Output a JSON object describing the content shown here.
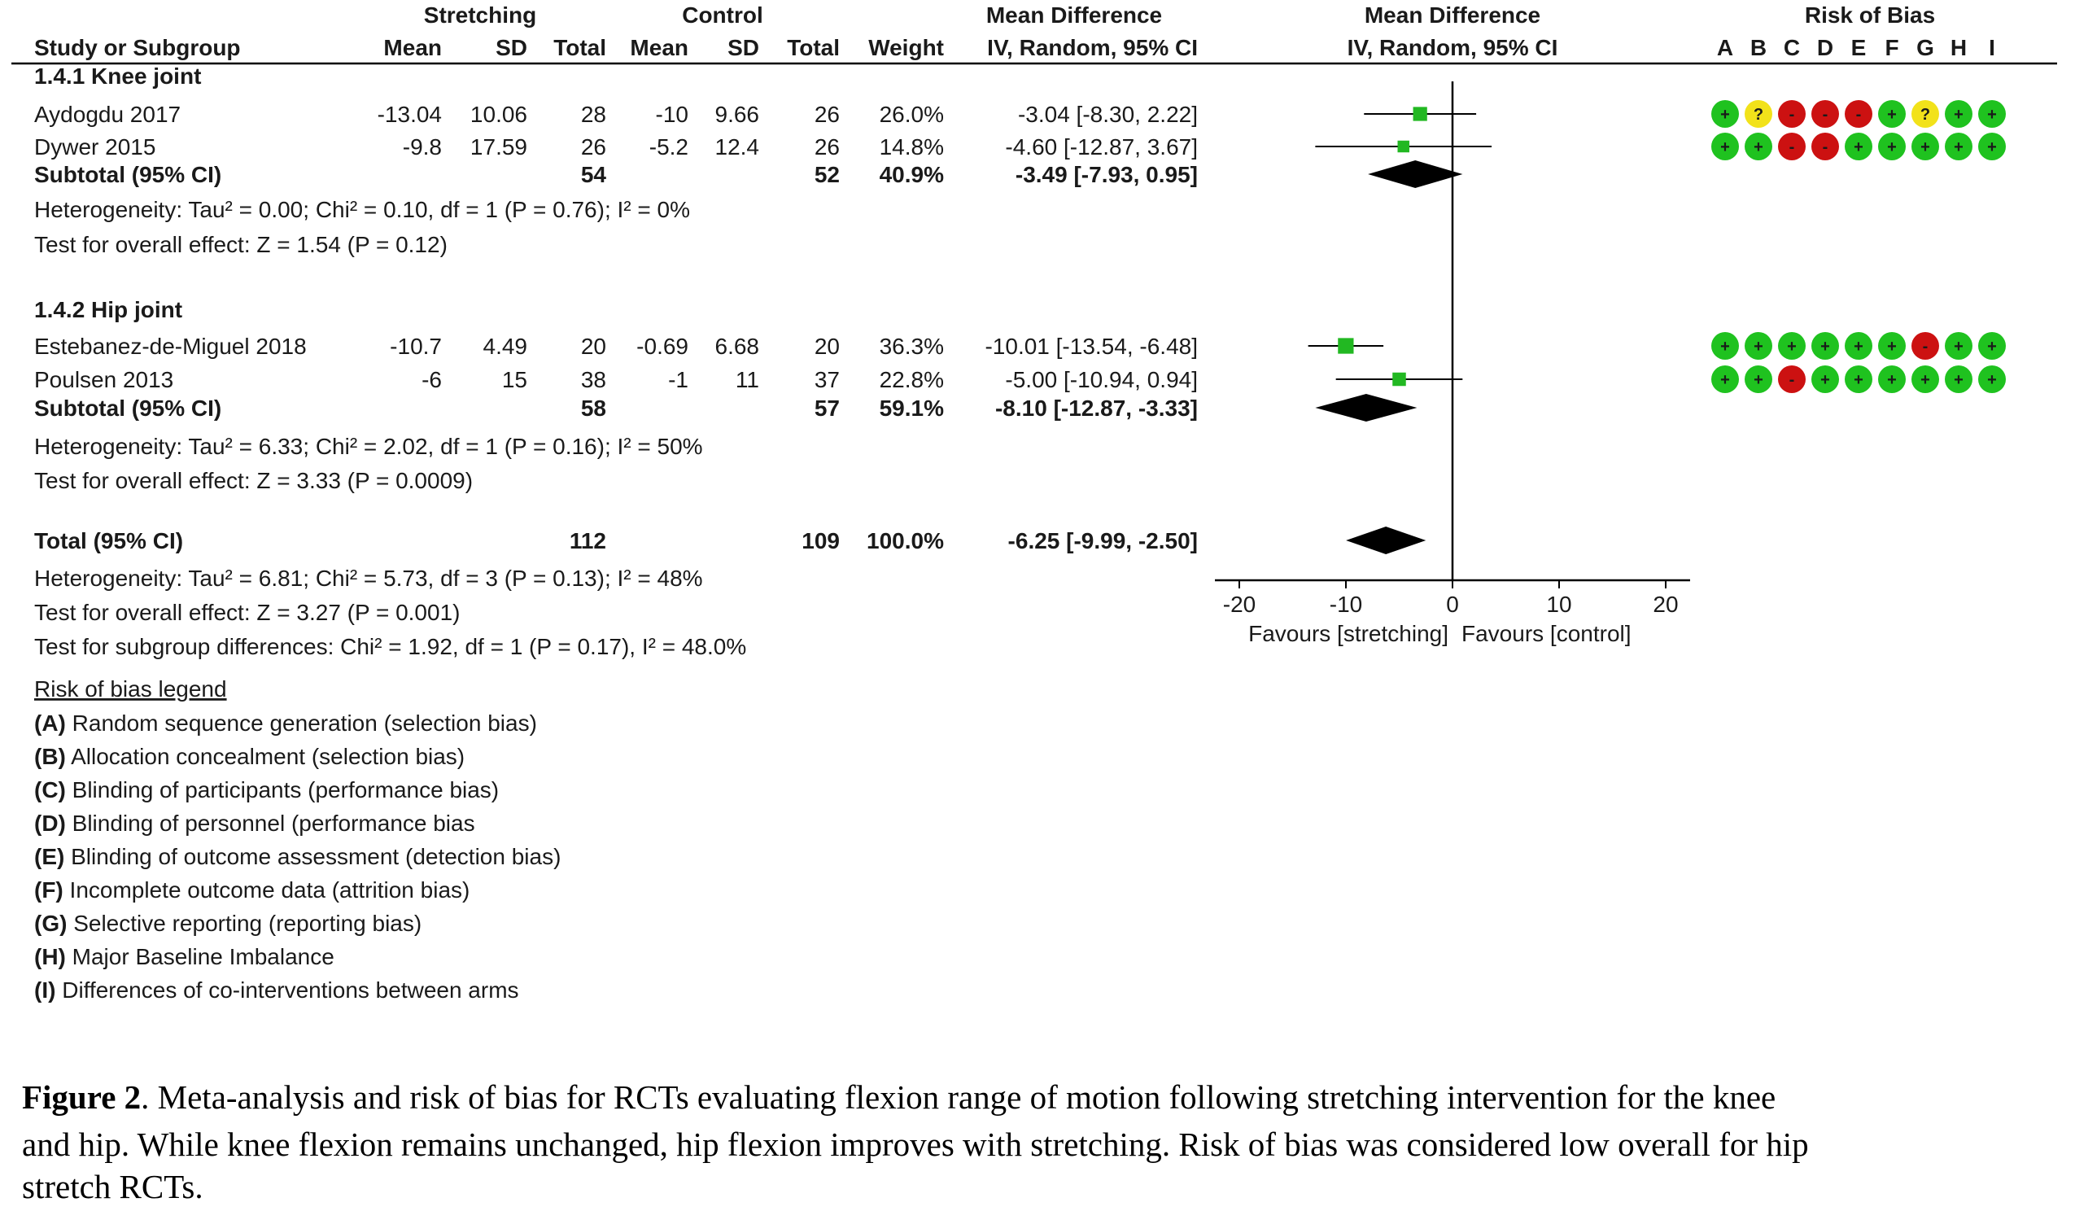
{
  "header": {
    "group_stretching": "Stretching",
    "group_control": "Control",
    "group_md_text": "Mean Difference",
    "group_md_plot": "Mean Difference",
    "group_rob": "Risk of Bias",
    "col_study": "Study or Subgroup",
    "col_mean": "Mean",
    "col_sd": "SD",
    "col_total": "Total",
    "col_weight": "Weight",
    "col_md_text": "IV, Random, 95% CI",
    "col_md_plot": "IV, Random, 95% CI"
  },
  "rob_letters": [
    "A",
    "B",
    "C",
    "D",
    "E",
    "F",
    "G",
    "H",
    "I"
  ],
  "chart_data": {
    "type": "forest",
    "effect_measure": "Mean Difference, IV, Random, 95% CI",
    "xlim": [
      -20,
      20
    ],
    "xticks": [
      "-20",
      "-10",
      "0",
      "10",
      "20"
    ],
    "xlabel_left": "Favours [stretching]",
    "xlabel_right": "Favours [control]",
    "subgroups": [
      {
        "label": "1.4.1 Knee joint",
        "studies": [
          {
            "name": "Aydogdu 2017",
            "exp_mean": "-13.04",
            "exp_sd": "10.06",
            "exp_total": "28",
            "ctrl_mean": "-10",
            "ctrl_sd": "9.66",
            "ctrl_total": "26",
            "weight": "26.0%",
            "ci_text": "-3.04 [-8.30, 2.22]",
            "md": -3.04,
            "lo": -8.3,
            "hi": 2.22,
            "w": 26.0,
            "rob": [
              "+",
              "?",
              "-",
              "-",
              "-",
              "+",
              "?",
              "+",
              "+"
            ]
          },
          {
            "name": "Dywer 2015",
            "exp_mean": "-9.8",
            "exp_sd": "17.59",
            "exp_total": "26",
            "ctrl_mean": "-5.2",
            "ctrl_sd": "12.4",
            "ctrl_total": "26",
            "weight": "14.8%",
            "ci_text": "-4.60 [-12.87, 3.67]",
            "md": -4.6,
            "lo": -12.87,
            "hi": 3.67,
            "w": 14.8,
            "rob": [
              "+",
              "+",
              "-",
              "-",
              "+",
              "+",
              "+",
              "+",
              "+"
            ]
          }
        ],
        "subtotal": {
          "label": "Subtotal (95% CI)",
          "exp_total": "54",
          "ctrl_total": "52",
          "weight": "40.9%",
          "ci_text": "-3.49 [-7.93, 0.95]",
          "md": -3.49,
          "lo": -7.93,
          "hi": 0.95
        },
        "heterogeneity": "Heterogeneity: Tau² = 0.00; Chi² = 0.10, df = 1 (P = 0.76); I² = 0%",
        "overall": "Test for overall effect: Z = 1.54 (P = 0.12)"
      },
      {
        "label": "1.4.2 Hip joint",
        "studies": [
          {
            "name": "Estebanez-de-Miguel 2018",
            "exp_mean": "-10.7",
            "exp_sd": "4.49",
            "exp_total": "20",
            "ctrl_mean": "-0.69",
            "ctrl_sd": "6.68",
            "ctrl_total": "20",
            "weight": "36.3%",
            "ci_text": "-10.01 [-13.54, -6.48]",
            "md": -10.01,
            "lo": -13.54,
            "hi": -6.48,
            "w": 36.3,
            "rob": [
              "+",
              "+",
              "+",
              "+",
              "+",
              "+",
              "-",
              "+",
              "+"
            ]
          },
          {
            "name": "Poulsen 2013",
            "exp_mean": "-6",
            "exp_sd": "15",
            "exp_total": "38",
            "ctrl_mean": "-1",
            "ctrl_sd": "11",
            "ctrl_total": "37",
            "weight": "22.8%",
            "ci_text": "-5.00 [-10.94, 0.94]",
            "md": -5.0,
            "lo": -10.94,
            "hi": 0.94,
            "w": 22.8,
            "rob": [
              "+",
              "+",
              "-",
              "+",
              "+",
              "+",
              "+",
              "+",
              "+"
            ]
          }
        ],
        "subtotal": {
          "label": "Subtotal (95% CI)",
          "exp_total": "58",
          "ctrl_total": "57",
          "weight": "59.1%",
          "ci_text": "-8.10 [-12.87, -3.33]",
          "md": -8.1,
          "lo": -12.87,
          "hi": -3.33
        },
        "heterogeneity": "Heterogeneity: Tau² = 6.33; Chi² = 2.02, df = 1 (P = 0.16); I² = 50%",
        "overall": "Test for overall effect: Z = 3.33 (P = 0.0009)"
      }
    ],
    "total": {
      "label": "Total (95% CI)",
      "exp_total": "112",
      "ctrl_total": "109",
      "weight": "100.0%",
      "ci_text": "-6.25 [-9.99, -2.50]",
      "md": -6.25,
      "lo": -9.99,
      "hi": -2.5
    },
    "total_notes": [
      "Heterogeneity: Tau² = 6.81; Chi² = 5.73, df = 3 (P = 0.13); I² = 48%",
      "Test for overall effect: Z = 3.27 (P = 0.001)",
      "Test for subgroup differences: Chi² = 1.92, df = 1 (P = 0.17), I² = 48.0%"
    ]
  },
  "legend": {
    "title": "Risk of bias legend",
    "items": [
      {
        "key": "(A)",
        "text": "Random sequence generation (selection bias)"
      },
      {
        "key": "(B)",
        "text": "Allocation concealment (selection bias)"
      },
      {
        "key": "(C)",
        "text": "Blinding of participants (performance bias)"
      },
      {
        "key": "(D)",
        "text": "Blinding of personnel (performance bias"
      },
      {
        "key": "(E)",
        "text": "Blinding of outcome assessment (detection bias)"
      },
      {
        "key": "(F)",
        "text": "Incomplete outcome data (attrition bias)"
      },
      {
        "key": "(G)",
        "text": "Selective reporting (reporting bias)"
      },
      {
        "key": "(H)",
        "text": "Major Baseline Imbalance"
      },
      {
        "key": "(I)",
        "text": "Differences of co-interventions between arms"
      }
    ]
  },
  "caption": {
    "label": "Figure 2",
    "lines": [
      ". Meta-analysis and risk of bias for RCTs evaluating flexion range of motion following stretching intervention for the knee",
      "and hip. While knee flexion remains unchanged, hip flexion improves with stretching. Risk of bias was considered low overall for hip",
      "stretch RCTs."
    ]
  },
  "colors": {
    "low_risk": "#1fc21f",
    "unclear_risk": "#f2e21a",
    "high_risk": "#cc1111",
    "study_square": "#22b822",
    "diamond": "#000000"
  }
}
